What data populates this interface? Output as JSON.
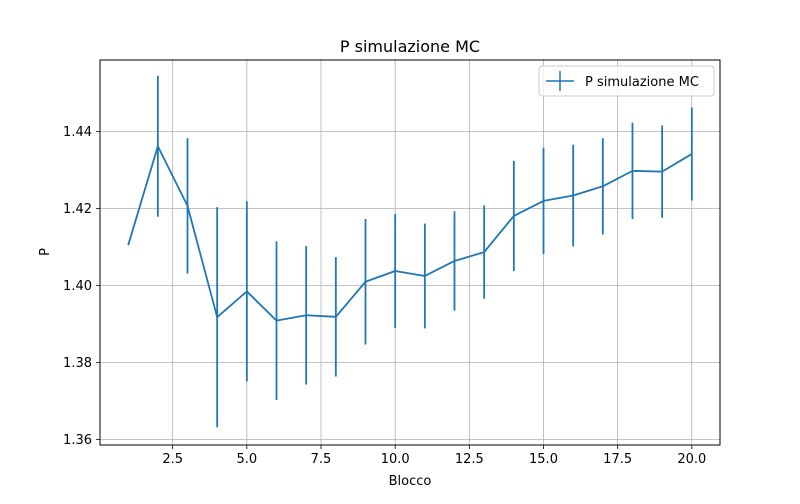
{
  "chart_data": {
    "type": "line",
    "title": "P simulazione MC",
    "xlabel": "Blocco",
    "ylabel": "P",
    "xlim": [
      0.05,
      20.95
    ],
    "ylim": [
      1.3586,
      1.4586
    ],
    "xticks": [
      2.5,
      5.0,
      7.5,
      10.0,
      12.5,
      15.0,
      17.5,
      20.0
    ],
    "xtick_labels": [
      "2.5",
      "5.0",
      "7.5",
      "10.0",
      "12.5",
      "15.0",
      "17.5",
      "20.0"
    ],
    "yticks": [
      1.36,
      1.38,
      1.4,
      1.42,
      1.44
    ],
    "ytick_labels": [
      "1.36",
      "1.38",
      "1.40",
      "1.42",
      "1.44"
    ],
    "grid": true,
    "legend_position": "upper right",
    "series": [
      {
        "name": "P simulazione MC",
        "color": "#1f77b4",
        "x": [
          1,
          2,
          3,
          4,
          5,
          6,
          7,
          8,
          9,
          10,
          11,
          12,
          13,
          14,
          15,
          16,
          17,
          18,
          19,
          20
        ],
        "y": [
          1.4105,
          1.4362,
          1.4207,
          1.3918,
          1.3985,
          1.3909,
          1.3923,
          1.3919,
          1.401,
          1.4038,
          1.4025,
          1.4064,
          1.4087,
          1.4181,
          1.422,
          1.4234,
          1.4258,
          1.4298,
          1.4296,
          1.4342
        ],
        "yerr": [
          0.0,
          0.0183,
          0.0176,
          0.0286,
          0.0234,
          0.0206,
          0.018,
          0.0155,
          0.0163,
          0.0148,
          0.0136,
          0.0129,
          0.0121,
          0.0143,
          0.0138,
          0.0132,
          0.0125,
          0.0125,
          0.012,
          0.0121
        ]
      }
    ]
  }
}
